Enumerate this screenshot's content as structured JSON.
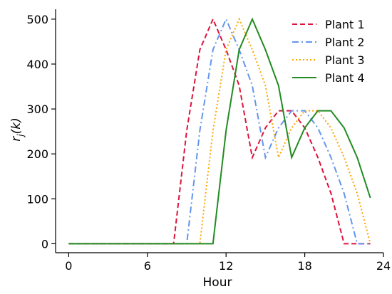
{
  "chart_data": {
    "type": "line",
    "xlabel": "Hour",
    "ylabel": "r",
    "ylabel_subscript": "j",
    "ylabel_suffix": "(k)",
    "xlim": [
      -1,
      24
    ],
    "ylim": [
      -20,
      522
    ],
    "xticks": [
      0,
      6,
      12,
      18,
      24
    ],
    "xtick_labels": [
      "0",
      "6",
      "12",
      "18",
      "24"
    ],
    "yticks": [
      0,
      100,
      200,
      300,
      400,
      500
    ],
    "ytick_labels": [
      "0",
      "100",
      "200",
      "300",
      "400",
      "500"
    ],
    "grid": false,
    "legend_position": "top-right",
    "series": [
      {
        "name": "Plant 1",
        "color": "#dc143c",
        "dash": "dashed",
        "x": [
          0,
          1,
          2,
          3,
          4,
          5,
          6,
          7,
          8,
          9,
          10,
          11,
          12,
          13,
          14,
          15,
          16,
          17,
          18,
          19,
          20,
          21,
          22,
          23
        ],
        "y": [
          0,
          0,
          0,
          0,
          0,
          0,
          0,
          0,
          0,
          252,
          432,
          500,
          432,
          352,
          192,
          258,
          296,
          296,
          258,
          192,
          112,
          0,
          0,
          0
        ]
      },
      {
        "name": "Plant 2",
        "color": "#6495ed",
        "dash": "dashdot",
        "x": [
          0,
          1,
          2,
          3,
          4,
          5,
          6,
          7,
          8,
          9,
          10,
          11,
          12,
          13,
          14,
          15,
          16,
          17,
          18,
          19,
          20,
          21,
          22,
          23
        ],
        "y": [
          0,
          0,
          0,
          0,
          0,
          0,
          0,
          0,
          0,
          0,
          252,
          432,
          500,
          432,
          352,
          192,
          258,
          296,
          296,
          258,
          192,
          112,
          0,
          0
        ]
      },
      {
        "name": "Plant 3",
        "color": "#ffa500",
        "dash": "dotted",
        "x": [
          0,
          1,
          2,
          3,
          4,
          5,
          6,
          7,
          8,
          9,
          10,
          11,
          12,
          13,
          14,
          15,
          16,
          17,
          18,
          19,
          20,
          21,
          22,
          23
        ],
        "y": [
          0,
          0,
          0,
          0,
          0,
          0,
          0,
          0,
          0,
          0,
          0,
          252,
          432,
          500,
          432,
          352,
          192,
          258,
          296,
          296,
          258,
          192,
          112,
          0
        ]
      },
      {
        "name": "Plant 4",
        "color": "#228b22",
        "dash": "solid",
        "x": [
          0,
          1,
          2,
          3,
          4,
          5,
          6,
          7,
          8,
          9,
          10,
          11,
          12,
          13,
          14,
          15,
          16,
          17,
          18,
          19,
          20,
          21,
          22,
          23
        ],
        "y": [
          0,
          0,
          0,
          0,
          0,
          0,
          0,
          0,
          0,
          0,
          0,
          0,
          252,
          432,
          500,
          432,
          352,
          192,
          258,
          296,
          296,
          258,
          192,
          102
        ]
      }
    ]
  }
}
